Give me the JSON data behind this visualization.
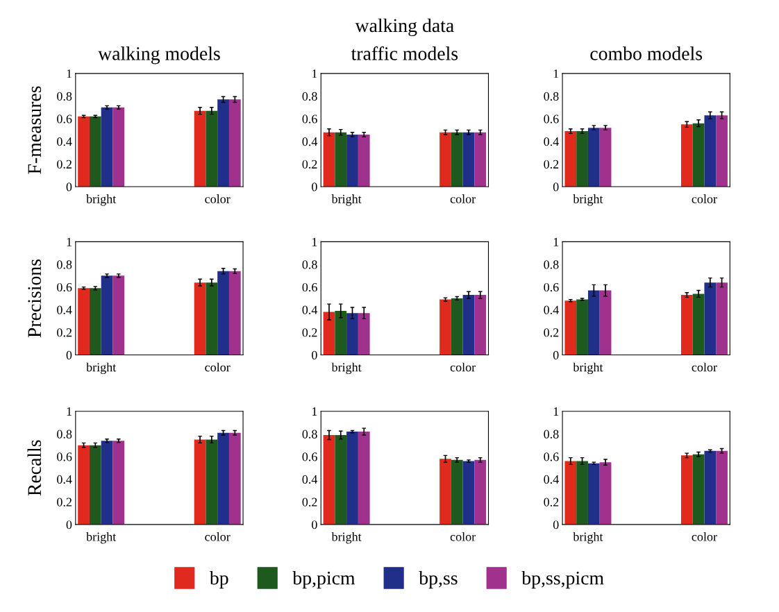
{
  "chart_data": [
    {
      "type": "bar",
      "title": "walking models",
      "ylabel": "F-measures",
      "categories": [
        "bright",
        "color"
      ],
      "ylim": [
        0,
        1
      ],
      "yticks": [
        0,
        0.2,
        0.4,
        0.6,
        0.8,
        1
      ],
      "series": [
        {
          "color": "#e02a1e",
          "values": [
            0.62,
            0.67
          ],
          "errors": [
            0.01,
            0.03
          ]
        },
        {
          "color": "#1e5a1e",
          "values": [
            0.62,
            0.67
          ],
          "errors": [
            0.01,
            0.03
          ]
        },
        {
          "color": "#202f8a",
          "values": [
            0.7,
            0.77
          ],
          "errors": [
            0.015,
            0.025
          ]
        },
        {
          "color": "#a0318c",
          "values": [
            0.7,
            0.77
          ],
          "errors": [
            0.015,
            0.025
          ]
        }
      ]
    },
    {
      "type": "bar",
      "title": "traffic models",
      "annotations": [
        "walking data"
      ],
      "categories": [
        "bright",
        "color"
      ],
      "ylim": [
        0,
        1
      ],
      "yticks": [
        0,
        0.2,
        0.4,
        0.6,
        0.8,
        1
      ],
      "series": [
        {
          "color": "#e02a1e",
          "values": [
            0.48,
            0.48
          ],
          "errors": [
            0.03,
            0.02
          ]
        },
        {
          "color": "#1e5a1e",
          "values": [
            0.48,
            0.48
          ],
          "errors": [
            0.025,
            0.02
          ]
        },
        {
          "color": "#202f8a",
          "values": [
            0.46,
            0.48
          ],
          "errors": [
            0.02,
            0.02
          ]
        },
        {
          "color": "#a0318c",
          "values": [
            0.46,
            0.48
          ],
          "errors": [
            0.02,
            0.02
          ]
        }
      ]
    },
    {
      "type": "bar",
      "title": "combo models",
      "categories": [
        "bright",
        "color"
      ],
      "ylim": [
        0,
        1
      ],
      "yticks": [
        0,
        0.2,
        0.4,
        0.6,
        0.8,
        1
      ],
      "series": [
        {
          "color": "#e02a1e",
          "values": [
            0.49,
            0.55
          ],
          "errors": [
            0.02,
            0.025
          ]
        },
        {
          "color": "#1e5a1e",
          "values": [
            0.49,
            0.56
          ],
          "errors": [
            0.02,
            0.03
          ]
        },
        {
          "color": "#202f8a",
          "values": [
            0.52,
            0.63
          ],
          "errors": [
            0.02,
            0.03
          ]
        },
        {
          "color": "#a0318c",
          "values": [
            0.52,
            0.63
          ],
          "errors": [
            0.02,
            0.03
          ]
        }
      ]
    },
    {
      "type": "bar",
      "ylabel": "Precisions",
      "categories": [
        "bright",
        "color"
      ],
      "ylim": [
        0,
        1
      ],
      "yticks": [
        0,
        0.2,
        0.4,
        0.6,
        0.8,
        1
      ],
      "series": [
        {
          "color": "#e02a1e",
          "values": [
            0.59,
            0.64
          ],
          "errors": [
            0.01,
            0.03
          ]
        },
        {
          "color": "#1e5a1e",
          "values": [
            0.59,
            0.64
          ],
          "errors": [
            0.015,
            0.03
          ]
        },
        {
          "color": "#202f8a",
          "values": [
            0.7,
            0.74
          ],
          "errors": [
            0.015,
            0.025
          ]
        },
        {
          "color": "#a0318c",
          "values": [
            0.7,
            0.74
          ],
          "errors": [
            0.015,
            0.02
          ]
        }
      ]
    },
    {
      "type": "bar",
      "categories": [
        "bright",
        "color"
      ],
      "ylim": [
        0,
        1
      ],
      "yticks": [
        0,
        0.2,
        0.4,
        0.6,
        0.8,
        1
      ],
      "series": [
        {
          "color": "#e02a1e",
          "values": [
            0.38,
            0.49
          ],
          "errors": [
            0.07,
            0.015
          ]
        },
        {
          "color": "#1e5a1e",
          "values": [
            0.39,
            0.5
          ],
          "errors": [
            0.06,
            0.015
          ]
        },
        {
          "color": "#202f8a",
          "values": [
            0.37,
            0.53
          ],
          "errors": [
            0.05,
            0.03
          ]
        },
        {
          "color": "#a0318c",
          "values": [
            0.37,
            0.53
          ],
          "errors": [
            0.05,
            0.03
          ]
        }
      ]
    },
    {
      "type": "bar",
      "categories": [
        "bright",
        "color"
      ],
      "ylim": [
        0,
        1
      ],
      "yticks": [
        0,
        0.2,
        0.4,
        0.6,
        0.8,
        1
      ],
      "series": [
        {
          "color": "#e02a1e",
          "values": [
            0.48,
            0.53
          ],
          "errors": [
            0.01,
            0.02
          ]
        },
        {
          "color": "#1e5a1e",
          "values": [
            0.49,
            0.54
          ],
          "errors": [
            0.01,
            0.03
          ]
        },
        {
          "color": "#202f8a",
          "values": [
            0.57,
            0.64
          ],
          "errors": [
            0.05,
            0.04
          ]
        },
        {
          "color": "#a0318c",
          "values": [
            0.57,
            0.64
          ],
          "errors": [
            0.05,
            0.04
          ]
        }
      ]
    },
    {
      "type": "bar",
      "ylabel": "Recalls",
      "categories": [
        "bright",
        "color"
      ],
      "ylim": [
        0,
        1
      ],
      "yticks": [
        0,
        0.2,
        0.4,
        0.6,
        0.8,
        1
      ],
      "series": [
        {
          "color": "#e02a1e",
          "values": [
            0.7,
            0.75
          ],
          "errors": [
            0.02,
            0.03
          ]
        },
        {
          "color": "#1e5a1e",
          "values": [
            0.7,
            0.75
          ],
          "errors": [
            0.02,
            0.03
          ]
        },
        {
          "color": "#202f8a",
          "values": [
            0.74,
            0.81
          ],
          "errors": [
            0.015,
            0.02
          ]
        },
        {
          "color": "#a0318c",
          "values": [
            0.74,
            0.81
          ],
          "errors": [
            0.015,
            0.02
          ]
        }
      ]
    },
    {
      "type": "bar",
      "categories": [
        "bright",
        "color"
      ],
      "ylim": [
        0,
        1
      ],
      "yticks": [
        0,
        0.2,
        0.4,
        0.6,
        0.8,
        1
      ],
      "legend": "bottom",
      "series": [
        {
          "name": "bp",
          "color": "#e02a1e",
          "values": [
            0.79,
            0.58
          ],
          "errors": [
            0.04,
            0.03
          ]
        },
        {
          "name": "bp,picm",
          "color": "#1e5a1e",
          "values": [
            0.79,
            0.57
          ],
          "errors": [
            0.035,
            0.02
          ]
        },
        {
          "name": "bp,ss",
          "color": "#202f8a",
          "values": [
            0.82,
            0.56
          ],
          "errors": [
            0.01,
            0.01
          ]
        },
        {
          "name": "bp,ss,picm",
          "color": "#a0318c",
          "values": [
            0.82,
            0.57
          ],
          "errors": [
            0.03,
            0.02
          ]
        }
      ]
    },
    {
      "type": "bar",
      "categories": [
        "bright",
        "color"
      ],
      "ylim": [
        0,
        1
      ],
      "yticks": [
        0,
        0.2,
        0.4,
        0.6,
        0.8,
        1
      ],
      "series": [
        {
          "color": "#e02a1e",
          "values": [
            0.56,
            0.61
          ],
          "errors": [
            0.03,
            0.02
          ]
        },
        {
          "color": "#1e5a1e",
          "values": [
            0.56,
            0.62
          ],
          "errors": [
            0.03,
            0.02
          ]
        },
        {
          "color": "#202f8a",
          "values": [
            0.54,
            0.65
          ],
          "errors": [
            0.01,
            0.01
          ]
        },
        {
          "color": "#a0318c",
          "values": [
            0.55,
            0.65
          ],
          "errors": [
            0.025,
            0.02
          ]
        }
      ]
    }
  ]
}
